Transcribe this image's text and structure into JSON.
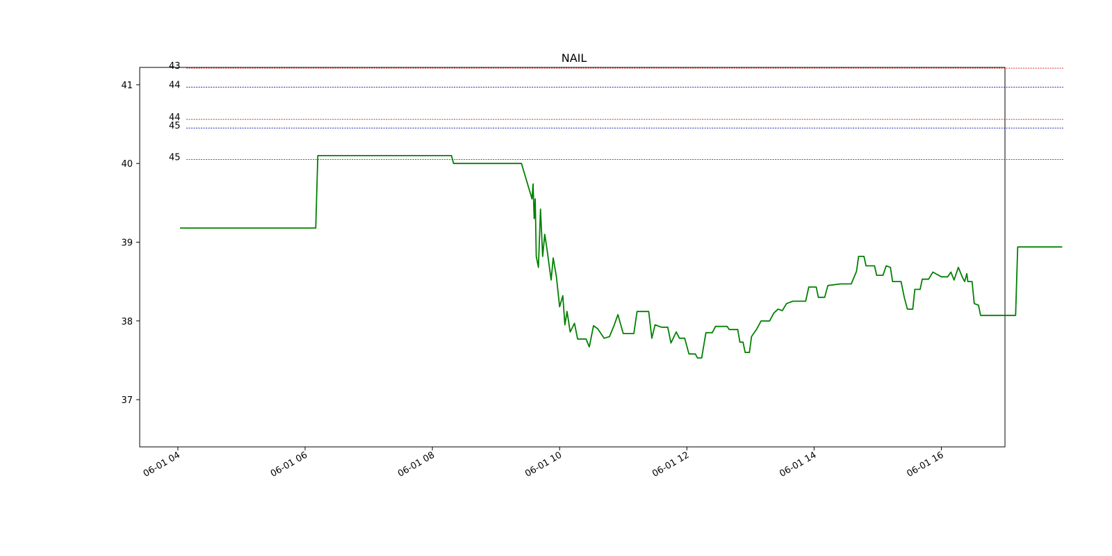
{
  "chart_data": {
    "type": "line",
    "title": "NAIL",
    "xlabel": "",
    "ylabel": "",
    "x_axis_type": "datetime",
    "xlim": [
      "06-01 03:24",
      "06-01 17:00"
    ],
    "ylim": [
      36.4,
      41.22
    ],
    "grid": false,
    "legend": "none",
    "x_ticks": [
      {
        "t": "06-01 04:00",
        "label": "06-01 04"
      },
      {
        "t": "06-01 06:00",
        "label": "06-01 06"
      },
      {
        "t": "06-01 08:00",
        "label": "06-01 08"
      },
      {
        "t": "06-01 10:00",
        "label": "06-01 10"
      },
      {
        "t": "06-01 12:00",
        "label": "06-01 12"
      },
      {
        "t": "06-01 14:00",
        "label": "06-01 14"
      },
      {
        "t": "06-01 16:00",
        "label": "06-01 16"
      }
    ],
    "y_ticks": [
      {
        "v": 37,
        "label": "37"
      },
      {
        "v": 38,
        "label": "38"
      },
      {
        "v": 39,
        "label": "39"
      },
      {
        "v": 40,
        "label": "40"
      },
      {
        "v": 41,
        "label": "41"
      }
    ],
    "levels": [
      {
        "label": "43",
        "y": 41.21,
        "color": "#d62728"
      },
      {
        "label": "44",
        "y": 40.97,
        "color": "#1f1fb4"
      },
      {
        "label": "44",
        "y": 40.56,
        "color": "#d62728"
      },
      {
        "label": "45",
        "y": 40.45,
        "color": "#1f1fb4"
      },
      {
        "label": "45",
        "y": 40.05,
        "color": "#d62728"
      }
    ],
    "series": [
      {
        "color": "#008000",
        "points": [
          [
            "06-01 04:02",
            39.18
          ],
          [
            "06-01 06:10",
            39.18
          ],
          [
            "06-01 06:12",
            40.1
          ],
          [
            "06-01 08:18",
            40.1
          ],
          [
            "06-01 08:20",
            40.0
          ],
          [
            "06-01 09:24",
            40.0
          ],
          [
            "06-01 09:34",
            39.55
          ],
          [
            "06-01 09:35",
            39.74
          ],
          [
            "06-01 09:36",
            39.3
          ],
          [
            "06-01 09:37",
            39.55
          ],
          [
            "06-01 09:38",
            38.82
          ],
          [
            "06-01 09:40",
            38.68
          ],
          [
            "06-01 09:42",
            39.42
          ],
          [
            "06-01 09:44",
            38.82
          ],
          [
            "06-01 09:46",
            39.1
          ],
          [
            "06-01 09:48",
            38.92
          ],
          [
            "06-01 09:52",
            38.52
          ],
          [
            "06-01 09:54",
            38.8
          ],
          [
            "06-01 09:57",
            38.56
          ],
          [
            "06-01 10:00",
            38.18
          ],
          [
            "06-01 10:03",
            38.32
          ],
          [
            "06-01 10:05",
            37.95
          ],
          [
            "06-01 10:07",
            38.12
          ],
          [
            "06-01 10:10",
            37.86
          ],
          [
            "06-01 10:14",
            37.97
          ],
          [
            "06-01 10:17",
            37.77
          ],
          [
            "06-01 10:25",
            37.77
          ],
          [
            "06-01 10:28",
            37.67
          ],
          [
            "06-01 10:32",
            37.94
          ],
          [
            "06-01 10:36",
            37.9
          ],
          [
            "06-01 10:42",
            37.78
          ],
          [
            "06-01 10:47",
            37.8
          ],
          [
            "06-01 10:51",
            37.93
          ],
          [
            "06-01 10:55",
            38.08
          ],
          [
            "06-01 11:00",
            37.84
          ],
          [
            "06-01 11:10",
            37.84
          ],
          [
            "06-01 11:13",
            38.12
          ],
          [
            "06-01 11:24",
            38.12
          ],
          [
            "06-01 11:27",
            37.78
          ],
          [
            "06-01 11:30",
            37.95
          ],
          [
            "06-01 11:36",
            37.92
          ],
          [
            "06-01 11:42",
            37.92
          ],
          [
            "06-01 11:45",
            37.72
          ],
          [
            "06-01 11:50",
            37.86
          ],
          [
            "06-01 11:53",
            37.78
          ],
          [
            "06-01 11:58",
            37.78
          ],
          [
            "06-01 12:02",
            37.58
          ],
          [
            "06-01 12:08",
            37.58
          ],
          [
            "06-01 12:10",
            37.53
          ],
          [
            "06-01 12:14",
            37.53
          ],
          [
            "06-01 12:18",
            37.85
          ],
          [
            "06-01 12:24",
            37.85
          ],
          [
            "06-01 12:27",
            37.93
          ],
          [
            "06-01 12:38",
            37.93
          ],
          [
            "06-01 12:40",
            37.89
          ],
          [
            "06-01 12:48",
            37.89
          ],
          [
            "06-01 12:50",
            37.73
          ],
          [
            "06-01 12:53",
            37.73
          ],
          [
            "06-01 12:55",
            37.6
          ],
          [
            "06-01 12:59",
            37.6
          ],
          [
            "06-01 13:01",
            37.8
          ],
          [
            "06-01 13:06",
            37.9
          ],
          [
            "06-01 13:10",
            38.0
          ],
          [
            "06-01 13:18",
            38.0
          ],
          [
            "06-01 13:22",
            38.1
          ],
          [
            "06-01 13:26",
            38.15
          ],
          [
            "06-01 13:30",
            38.13
          ],
          [
            "06-01 13:34",
            38.22
          ],
          [
            "06-01 13:40",
            38.25
          ],
          [
            "06-01 13:52",
            38.25
          ],
          [
            "06-01 13:55",
            38.43
          ],
          [
            "06-01 14:02",
            38.43
          ],
          [
            "06-01 14:04",
            38.3
          ],
          [
            "06-01 14:10",
            38.3
          ],
          [
            "06-01 14:13",
            38.45
          ],
          [
            "06-01 14:25",
            38.47
          ],
          [
            "06-01 14:35",
            38.47
          ],
          [
            "06-01 14:40",
            38.63
          ],
          [
            "06-01 14:42",
            38.82
          ],
          [
            "06-01 14:47",
            38.82
          ],
          [
            "06-01 14:49",
            38.7
          ],
          [
            "06-01 14:57",
            38.7
          ],
          [
            "06-01 14:59",
            38.58
          ],
          [
            "06-01 15:05",
            38.58
          ],
          [
            "06-01 15:08",
            38.7
          ],
          [
            "06-01 15:12",
            38.68
          ],
          [
            "06-01 15:14",
            38.5
          ],
          [
            "06-01 15:22",
            38.5
          ],
          [
            "06-01 15:25",
            38.3
          ],
          [
            "06-01 15:28",
            38.15
          ],
          [
            "06-01 15:33",
            38.15
          ],
          [
            "06-01 15:35",
            38.4
          ],
          [
            "06-01 15:40",
            38.4
          ],
          [
            "06-01 15:42",
            38.53
          ],
          [
            "06-01 15:48",
            38.53
          ],
          [
            "06-01 15:52",
            38.62
          ],
          [
            "06-01 16:00",
            38.56
          ],
          [
            "06-01 16:06",
            38.56
          ],
          [
            "06-01 16:09",
            38.62
          ],
          [
            "06-01 16:12",
            38.52
          ],
          [
            "06-01 16:16",
            38.68
          ],
          [
            "06-01 16:20",
            38.55
          ],
          [
            "06-01 16:22",
            38.5
          ],
          [
            "06-01 16:24",
            38.6
          ],
          [
            "06-01 16:25",
            38.5
          ],
          [
            "06-01 16:29",
            38.5
          ],
          [
            "06-01 16:31",
            38.22
          ],
          [
            "06-01 16:35",
            38.2
          ],
          [
            "06-01 16:37",
            38.07
          ],
          [
            "06-01 17:10",
            38.07
          ],
          [
            "06-01 17:12",
            38.94
          ],
          [
            "06-01 17:54",
            38.94
          ]
        ]
      }
    ]
  }
}
